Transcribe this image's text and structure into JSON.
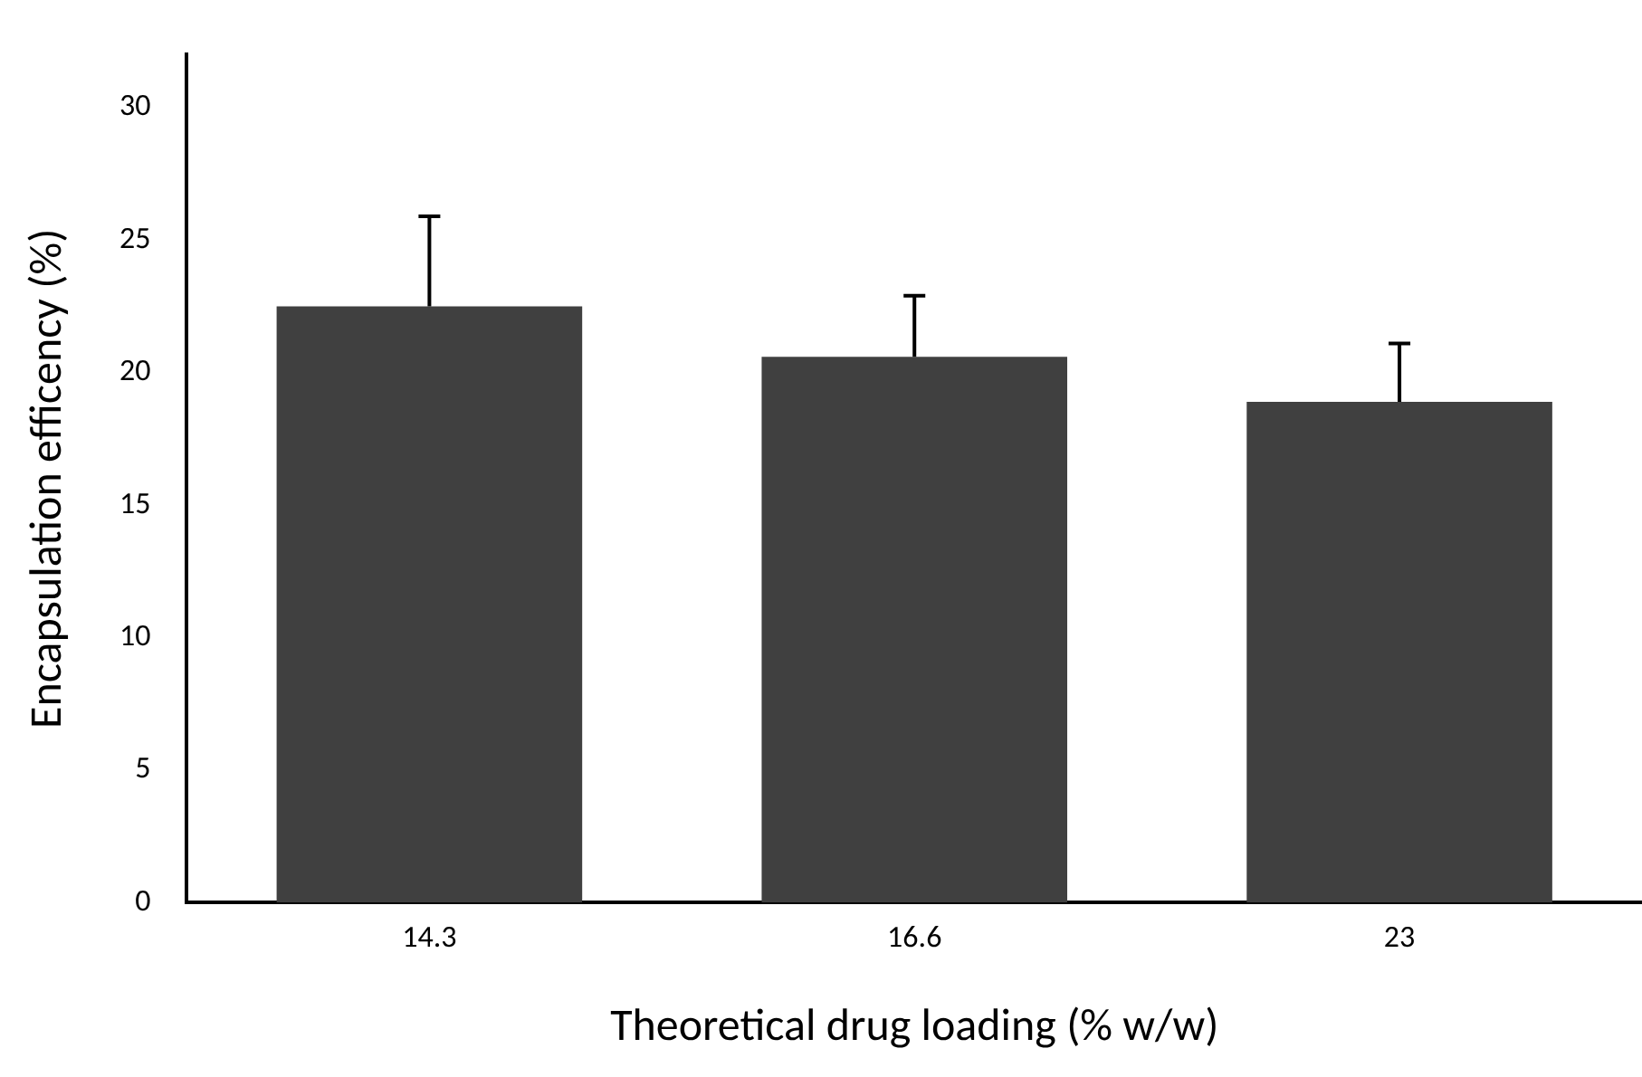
{
  "chart_data": {
    "type": "bar",
    "xlabel": "Theoretical drug loading (% w/w)",
    "ylabel": "Encapsulation efficency (%)",
    "categories": [
      "14.3",
      "16.6",
      "23"
    ],
    "values": [
      22.5,
      20.6,
      18.9
    ],
    "errors": [
      [
        22.5,
        25.9
      ],
      [
        20.6,
        22.9
      ],
      [
        18.9,
        21.1
      ]
    ],
    "color": "#404040",
    "ylim": [
      0,
      32
    ],
    "yticks": [
      0,
      5,
      10,
      15,
      20,
      25,
      30
    ],
    "grid": false,
    "legend": false
  }
}
